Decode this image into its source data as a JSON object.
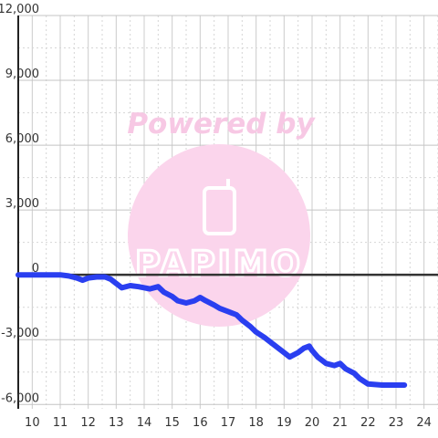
{
  "chart_data": {
    "type": "line",
    "title": "",
    "xlabel": "",
    "ylabel": "",
    "xlim": [
      9.5,
      24.5
    ],
    "ylim": [
      -6200,
      12000
    ],
    "x_ticks": [
      10,
      11,
      12,
      13,
      14,
      15,
      16,
      17,
      18,
      19,
      20,
      21,
      22,
      23,
      24
    ],
    "x_tick_labels": [
      "10",
      "11",
      "12",
      "13",
      "14",
      "15",
      "16",
      "17",
      "18",
      "19",
      "20",
      "21",
      "22",
      "23",
      "24"
    ],
    "y_ticks": [
      -6000,
      -3000,
      0,
      3000,
      6000,
      9000,
      12000
    ],
    "y_tick_labels": [
      "-6,000",
      "-3,000",
      "0",
      "3,000",
      "6,000",
      "9,000",
      "12,000"
    ],
    "grid": true,
    "legend": "none",
    "series_color": "#2a3ff0",
    "series": [
      {
        "x": [
          9.5,
          10.0,
          10.5,
          11.0,
          11.3,
          11.6,
          11.8,
          12.0,
          12.3,
          12.6,
          12.8,
          13.0,
          13.2,
          13.5,
          13.8,
          14.2,
          14.5,
          14.7,
          15.0,
          15.2,
          15.5,
          15.8,
          16.0,
          16.2,
          16.5,
          16.7,
          17.0,
          17.3,
          17.5,
          17.8,
          18.0,
          18.3,
          18.6,
          19.0,
          19.2,
          19.5,
          19.7,
          19.9,
          20.0,
          20.2,
          20.5,
          20.8,
          21.0,
          21.2,
          21.5,
          21.7,
          22.0,
          22.5,
          23.0,
          23.3
        ],
        "values": [
          0,
          0,
          0,
          0,
          -50,
          -150,
          -250,
          -150,
          -100,
          -100,
          -200,
          -400,
          -600,
          -500,
          -550,
          -650,
          -550,
          -800,
          -1000,
          -1200,
          -1300,
          -1200,
          -1050,
          -1200,
          -1400,
          -1550,
          -1700,
          -1850,
          -2100,
          -2400,
          -2650,
          -2900,
          -3200,
          -3600,
          -3800,
          -3600,
          -3400,
          -3300,
          -3500,
          -3800,
          -4100,
          -4200,
          -4100,
          -4350,
          -4550,
          -4800,
          -5050,
          -5100,
          -5100,
          -5100
        ]
      }
    ]
  },
  "watermark": {
    "top_text": "Powered by",
    "brand_text": "PAPIMO",
    "color": "#f7c8e4"
  }
}
